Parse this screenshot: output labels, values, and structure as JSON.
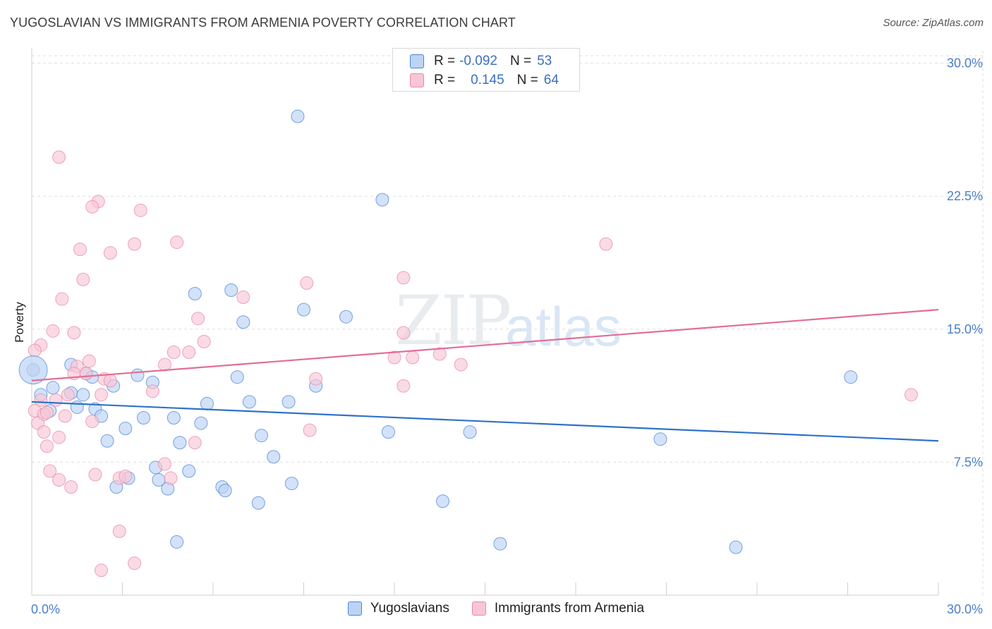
{
  "header": {
    "title": "YUGOSLAVIAN VS IMMIGRANTS FROM ARMENIA POVERTY CORRELATION CHART",
    "source": "Source: ZipAtlas.com"
  },
  "watermark": {
    "zip": "ZIP",
    "atlas": "atlas"
  },
  "colors": {
    "blue": "#4a86d9",
    "blue_fill": "#bcd3f4",
    "blue_line": "#2f72c9",
    "pink": "#e88aa8",
    "pink_fill": "#f8c6d5",
    "pink_line": "#e26e97",
    "grid": "#dedede",
    "axis_text": "#4a7fc9"
  },
  "legend": {
    "rows": [
      {
        "r_label": "R =",
        "r_value": "-0.092",
        "n_label": "N =",
        "n_value": "53"
      },
      {
        "r_label": "R =",
        "r_value": "0.145",
        "n_label": "N =",
        "n_value": "64"
      }
    ]
  },
  "chart_data": {
    "type": "scatter",
    "title": "YUGOSLAVIAN VS IMMIGRANTS FROM ARMENIA POVERTY CORRELATION CHART",
    "xlabel": "",
    "ylabel": "Poverty",
    "xlim": [
      0,
      30
    ],
    "ylim": [
      0,
      30.7
    ],
    "x_tick_labels": [
      "0.0%",
      "30.0%"
    ],
    "y_ticks": [
      7.5,
      15.0,
      22.5,
      30.0
    ],
    "y_tick_labels": [
      "7.5%",
      "15.0%",
      "22.5%",
      "30.0%"
    ],
    "grid": true,
    "legend_position": "bottom-center",
    "series": [
      {
        "name": "Yugoslavians",
        "r": -0.092,
        "n": 53,
        "trend": [
          [
            0,
            10.9
          ],
          [
            30,
            8.7
          ]
        ],
        "points": [
          [
            8.8,
            27.0
          ],
          [
            11.6,
            22.3
          ],
          [
            5.4,
            17.0
          ],
          [
            6.6,
            17.2
          ],
          [
            9.0,
            16.1
          ],
          [
            10.4,
            15.7
          ],
          [
            7.0,
            15.4
          ],
          [
            1.3,
            13.0
          ],
          [
            1.8,
            12.5
          ],
          [
            2.0,
            12.3
          ],
          [
            3.5,
            12.4
          ],
          [
            6.8,
            12.3
          ],
          [
            2.7,
            11.8
          ],
          [
            4.0,
            12.0
          ],
          [
            0.7,
            11.7
          ],
          [
            0.3,
            11.3
          ],
          [
            1.3,
            11.4
          ],
          [
            1.7,
            11.3
          ],
          [
            9.4,
            11.8
          ],
          [
            27.1,
            12.3
          ],
          [
            0.6,
            10.4
          ],
          [
            1.5,
            10.6
          ],
          [
            2.1,
            10.5
          ],
          [
            2.3,
            10.1
          ],
          [
            3.7,
            10.0
          ],
          [
            4.7,
            10.0
          ],
          [
            5.8,
            10.8
          ],
          [
            7.2,
            10.9
          ],
          [
            8.5,
            10.9
          ],
          [
            3.1,
            9.4
          ],
          [
            5.6,
            9.7
          ],
          [
            2.5,
            8.7
          ],
          [
            4.9,
            8.6
          ],
          [
            7.6,
            9.0
          ],
          [
            11.8,
            9.2
          ],
          [
            14.5,
            9.2
          ],
          [
            20.8,
            8.8
          ],
          [
            8.0,
            7.8
          ],
          [
            4.1,
            7.2
          ],
          [
            5.2,
            7.0
          ],
          [
            3.2,
            6.6
          ],
          [
            4.2,
            6.5
          ],
          [
            2.8,
            6.1
          ],
          [
            4.5,
            6.0
          ],
          [
            6.3,
            6.1
          ],
          [
            6.4,
            5.9
          ],
          [
            8.6,
            6.3
          ],
          [
            7.5,
            5.2
          ],
          [
            13.6,
            5.3
          ],
          [
            4.8,
            3.0
          ],
          [
            15.5,
            2.9
          ],
          [
            23.3,
            2.7
          ],
          [
            0.05,
            12.7
          ]
        ]
      },
      {
        "name": "Immigrants from Armenia",
        "r": 0.145,
        "n": 64,
        "trend": [
          [
            0,
            12.1
          ],
          [
            30,
            16.1
          ]
        ],
        "points": [
          [
            0.9,
            24.7
          ],
          [
            2.2,
            22.2
          ],
          [
            2.0,
            21.9
          ],
          [
            3.6,
            21.7
          ],
          [
            1.6,
            19.5
          ],
          [
            2.6,
            19.3
          ],
          [
            3.4,
            19.8
          ],
          [
            4.8,
            19.9
          ],
          [
            19.0,
            19.8
          ],
          [
            1.7,
            17.8
          ],
          [
            9.1,
            17.6
          ],
          [
            12.3,
            17.9
          ],
          [
            1.0,
            16.7
          ],
          [
            7.0,
            16.8
          ],
          [
            5.5,
            15.6
          ],
          [
            0.7,
            14.9
          ],
          [
            1.4,
            14.8
          ],
          [
            5.7,
            14.3
          ],
          [
            12.3,
            14.8
          ],
          [
            0.3,
            14.1
          ],
          [
            0.1,
            13.8
          ],
          [
            4.7,
            13.7
          ],
          [
            5.2,
            13.7
          ],
          [
            12.0,
            13.4
          ],
          [
            12.6,
            13.4
          ],
          [
            13.5,
            13.6
          ],
          [
            1.9,
            13.2
          ],
          [
            4.4,
            13.0
          ],
          [
            14.2,
            13.0
          ],
          [
            1.5,
            12.9
          ],
          [
            1.4,
            12.5
          ],
          [
            1.8,
            12.5
          ],
          [
            2.4,
            12.2
          ],
          [
            2.6,
            12.1
          ],
          [
            9.4,
            12.2
          ],
          [
            12.3,
            11.8
          ],
          [
            4.0,
            11.5
          ],
          [
            0.3,
            11.0
          ],
          [
            1.2,
            11.3
          ],
          [
            0.8,
            11.0
          ],
          [
            2.3,
            11.3
          ],
          [
            29.1,
            11.3
          ],
          [
            0.1,
            10.4
          ],
          [
            0.4,
            10.2
          ],
          [
            0.5,
            10.3
          ],
          [
            1.1,
            10.1
          ],
          [
            2.0,
            9.8
          ],
          [
            0.2,
            9.7
          ],
          [
            0.4,
            9.2
          ],
          [
            9.2,
            9.3
          ],
          [
            0.9,
            8.9
          ],
          [
            0.5,
            8.4
          ],
          [
            5.4,
            8.6
          ],
          [
            4.4,
            7.4
          ],
          [
            0.6,
            7.0
          ],
          [
            2.1,
            6.8
          ],
          [
            2.9,
            6.6
          ],
          [
            3.1,
            6.7
          ],
          [
            4.6,
            6.6
          ],
          [
            0.9,
            6.5
          ],
          [
            1.3,
            6.1
          ],
          [
            2.9,
            3.6
          ],
          [
            3.4,
            1.8
          ],
          [
            2.3,
            1.4
          ]
        ]
      }
    ]
  },
  "bottom_legend": {
    "items": [
      {
        "label": "Yugoslavians"
      },
      {
        "label": "Immigrants from Armenia"
      }
    ]
  }
}
